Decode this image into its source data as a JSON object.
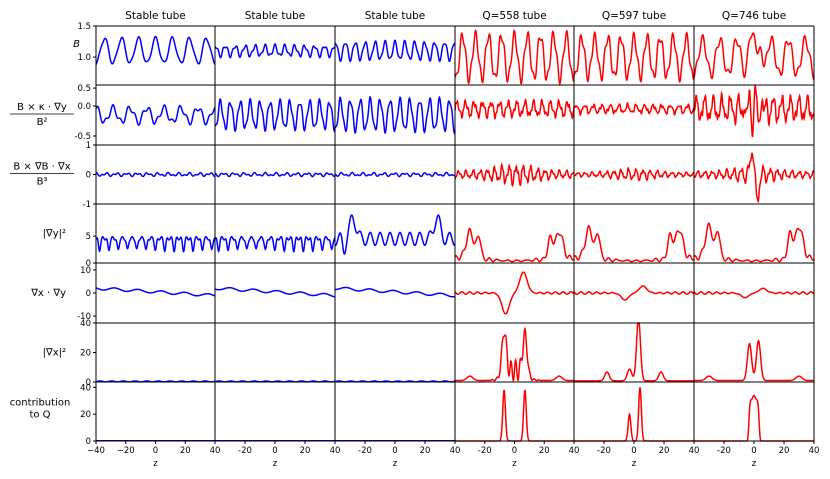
{
  "chart_data": {
    "type": "line",
    "layout": "grid of small multiples, 7 rows x 6 columns, shared x axis",
    "columns": [
      {
        "title": "Stable tube",
        "color": "#0000ff"
      },
      {
        "title": "Stable tube",
        "color": "#0000ff"
      },
      {
        "title": "Stable tube",
        "color": "#0000ff"
      },
      {
        "title": "Q=558 tube",
        "color": "#ff0000"
      },
      {
        "title": "Q=597 tube",
        "color": "#ff0000"
      },
      {
        "title": "Q=746 tube",
        "color": "#ff0000"
      }
    ],
    "rows": [
      {
        "label": "B",
        "ylim": [
          0.55,
          1.5
        ],
        "yticks": [
          "1.5",
          "1.0",
          "0.5"
        ],
        "ytick_values": [
          1.5,
          1.0,
          0.5
        ]
      },
      {
        "label": "B × κ · ∇y / B²",
        "ylim": [
          -0.65,
          0.35
        ],
        "yticks": [
          "0.0",
          "-0.5"
        ],
        "ytick_values": [
          0.0,
          -0.5
        ]
      },
      {
        "label": "B × ∇B · ∇x / B³",
        "ylim": [
          -1,
          1
        ],
        "yticks": [
          "1",
          "0",
          "-1"
        ],
        "ytick_values": [
          1,
          0,
          -1
        ]
      },
      {
        "label": "|∇y|²",
        "ylim": [
          0,
          11
        ],
        "yticks": [
          "5",
          "0"
        ],
        "ytick_values": [
          5,
          0
        ]
      },
      {
        "label": "∇x · ∇y",
        "ylim": [
          -13,
          13
        ],
        "yticks": [
          "10",
          "0",
          "-10"
        ],
        "ytick_values": [
          10,
          0,
          -10
        ]
      },
      {
        "label": "|∇x|²",
        "ylim": [
          0,
          40
        ],
        "yticks": [
          "40",
          "20",
          "0"
        ],
        "ytick_values": [
          40,
          20,
          0
        ]
      },
      {
        "label": "contribution to Q",
        "ylim": [
          0,
          44
        ],
        "yticks": [
          "40",
          "20",
          "0"
        ],
        "ytick_values": [
          40,
          20,
          0
        ]
      }
    ],
    "x": {
      "label": "z",
      "xlim": [
        -40,
        40
      ],
      "first_column_ticks": [
        "−40",
        "−20",
        "0",
        "20",
        "40"
      ],
      "other_column_ticks": [
        "-20",
        "0",
        "20",
        "40"
      ]
    },
    "series_description": "approximate curves of each quantity along z for each flux tube; values estimated from the plot",
    "y_ranges_observed": {
      "B": {
        "stable": [
          0.85,
          1.35
        ],
        "q558": [
          0.6,
          1.4
        ],
        "q597": [
          0.65,
          1.4
        ],
        "q746": [
          0.7,
          1.5
        ]
      },
      "contribution_to_Q_peaks": {
        "q558": [
          [
            -7,
            38
          ],
          [
            7,
            38
          ]
        ],
        "q597": [
          [
            -3,
            20
          ],
          [
            4,
            40
          ]
        ],
        "q746": [
          [
            -3,
            34
          ],
          [
            3,
            34
          ]
        ]
      },
      "grad_x_squared_peaks": {
        "q558": [
          [
            -7,
            32
          ],
          [
            7,
            30
          ]
        ],
        "q597": [
          [
            3,
            42
          ]
        ],
        "q746": [
          [
            -2,
            26
          ],
          [
            3,
            28
          ]
        ]
      }
    }
  }
}
